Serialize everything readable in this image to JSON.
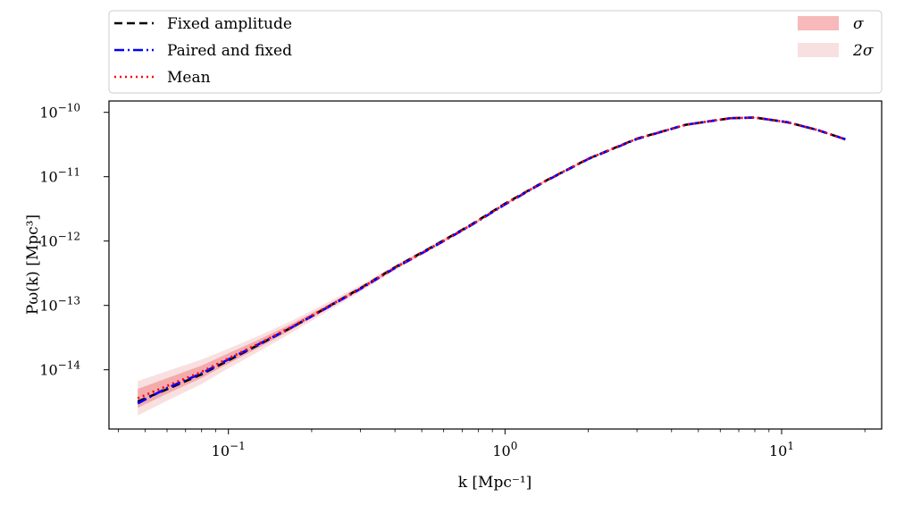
{
  "chart_data": {
    "type": "line",
    "title": "",
    "xlabel": "k [Mpc⁻¹]",
    "ylabel": "Pω(k) [Mpc³]",
    "xscale": "log",
    "yscale": "log",
    "xlim": [
      0.037,
      23.0
    ],
    "ylim": [
      1.2e-15,
      1.5e-10
    ],
    "grid": false,
    "legend_position": "top, outside plot (two columns)",
    "x_ticks": [
      {
        "value": 0.1,
        "base": "10",
        "exp": "−1"
      },
      {
        "value": 1,
        "base": "10",
        "exp": "0"
      },
      {
        "value": 10,
        "base": "10",
        "exp": "1"
      }
    ],
    "y_ticks": [
      {
        "value": 1e-14,
        "base": "10",
        "exp": "−14"
      },
      {
        "value": 1e-13,
        "base": "10",
        "exp": "−13"
      },
      {
        "value": 1e-12,
        "base": "10",
        "exp": "−12"
      },
      {
        "value": 1e-11,
        "base": "10",
        "exp": "−11"
      },
      {
        "value": 1e-10,
        "base": "10",
        "exp": "−10"
      }
    ],
    "x": [
      0.047,
      0.06,
      0.08,
      0.1,
      0.13,
      0.17,
      0.22,
      0.3,
      0.4,
      0.55,
      0.75,
      1.0,
      1.4,
      2.0,
      3.0,
      4.5,
      6.5,
      8.0,
      10.5,
      13.5,
      17.0
    ],
    "series": [
      {
        "name": "Fixed amplitude",
        "color": "#000000",
        "style": "dashed",
        "values": [
          3.2e-15,
          5e-15,
          8.5e-15,
          1.4e-14,
          2.5e-14,
          4.6e-14,
          8.6e-14,
          1.85e-13,
          3.9e-13,
          8.3e-13,
          1.77e-12,
          3.8e-12,
          8.6e-12,
          1.9e-11,
          3.9e-11,
          6.4e-11,
          8.1e-11,
          8.3e-11,
          7e-11,
          5.3e-11,
          3.8e-11
        ]
      },
      {
        "name": "Paired and fixed",
        "color": "#0000ff",
        "style": "dashdot",
        "values": [
          3e-15,
          5.2e-15,
          8.8e-15,
          1.45e-14,
          2.55e-14,
          4.6e-14,
          8.5e-14,
          1.8e-13,
          3.8e-13,
          8.1e-13,
          1.73e-12,
          3.7e-12,
          8.5e-12,
          1.88e-11,
          3.85e-11,
          6.4e-11,
          8.1e-11,
          8.3e-11,
          7e-11,
          5.3e-11,
          3.8e-11
        ]
      },
      {
        "name": "Mean",
        "color": "#ff0000",
        "style": "dotted",
        "values": [
          3.6e-15,
          5.6e-15,
          9.3e-15,
          1.5e-14,
          2.6e-14,
          4.7e-14,
          8.7e-14,
          1.83e-13,
          3.85e-13,
          8.2e-13,
          1.75e-12,
          3.75e-12,
          8.6e-12,
          1.9e-11,
          3.9e-11,
          6.4e-11,
          8.1e-11,
          8.3e-11,
          7e-11,
          5.3e-11,
          3.8e-11
        ]
      }
    ],
    "bands": [
      {
        "name": "σ",
        "color": "#f08080",
        "opacity": 0.55,
        "rel_width": [
          0.4,
          0.32,
          0.25,
          0.2,
          0.15,
          0.11,
          0.08,
          0.06,
          0.05,
          0.04,
          0.035,
          0.03,
          0.025,
          0.02,
          0.015,
          0.01,
          0.008,
          0.007,
          0.006,
          0.005,
          0.005
        ]
      },
      {
        "name": "2σ",
        "color": "#f4c2c2",
        "opacity": 0.5,
        "rel_width": [
          0.85,
          0.7,
          0.55,
          0.42,
          0.32,
          0.24,
          0.18,
          0.13,
          0.1,
          0.08,
          0.065,
          0.055,
          0.045,
          0.035,
          0.025,
          0.018,
          0.014,
          0.012,
          0.01,
          0.009,
          0.009
        ]
      }
    ]
  }
}
